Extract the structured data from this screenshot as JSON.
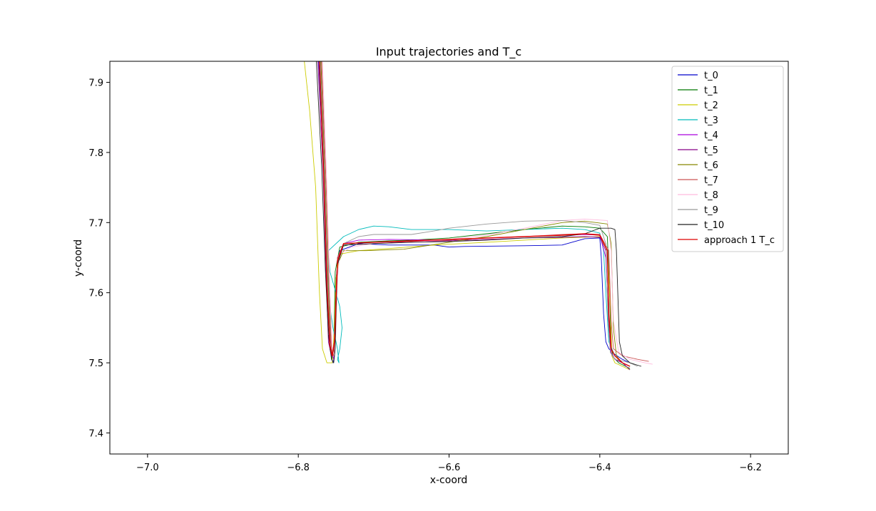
{
  "chart_data": {
    "type": "line",
    "title": "Input trajectories and T_c",
    "xlabel": "x-coord",
    "ylabel": "y-coord",
    "xlim": [
      -7.05,
      -6.15
    ],
    "ylim": [
      7.37,
      7.93
    ],
    "xticks": [
      -7.0,
      -6.8,
      -6.6,
      -6.4,
      -6.2
    ],
    "xtick_labels": [
      "−7.0",
      "−6.8",
      "−6.6",
      "−6.4",
      "−6.2"
    ],
    "yticks": [
      7.4,
      7.5,
      7.6,
      7.7,
      7.8,
      7.9
    ],
    "ytick_labels": [
      "7.4",
      "7.5",
      "7.6",
      "7.7",
      "7.8",
      "7.9"
    ],
    "grid": false,
    "legend_position": "top-right",
    "series": [
      {
        "name": "t_0",
        "color": "#0000cc",
        "x": [
          -6.773,
          -6.765,
          -6.762,
          -6.758,
          -6.754,
          -6.752,
          -6.751,
          -6.75,
          -6.745,
          -6.72,
          -6.68,
          -6.62,
          -6.6,
          -6.58,
          -6.5,
          -6.45,
          -6.42,
          -6.4,
          -6.398,
          -6.395,
          -6.392,
          -6.388,
          -6.38,
          -6.37,
          -6.36
        ],
        "y": [
          7.93,
          7.75,
          7.6,
          7.52,
          7.5,
          7.51,
          7.56,
          7.62,
          7.66,
          7.67,
          7.668,
          7.668,
          7.665,
          7.666,
          7.667,
          7.668,
          7.677,
          7.678,
          7.65,
          7.57,
          7.53,
          7.52,
          7.512,
          7.505,
          7.5
        ]
      },
      {
        "name": "t_1",
        "color": "#007700",
        "x": [
          -6.771,
          -6.765,
          -6.762,
          -6.758,
          -6.755,
          -6.753,
          -6.752,
          -6.751,
          -6.745,
          -6.72,
          -6.68,
          -6.65,
          -6.6,
          -6.55,
          -6.5,
          -6.45,
          -6.42,
          -6.4,
          -6.39,
          -6.387,
          -6.385,
          -6.382,
          -6.375,
          -6.36
        ],
        "y": [
          7.93,
          7.75,
          7.6,
          7.52,
          7.505,
          7.52,
          7.57,
          7.63,
          7.665,
          7.672,
          7.674,
          7.675,
          7.678,
          7.684,
          7.69,
          7.695,
          7.694,
          7.692,
          7.68,
          7.6,
          7.52,
          7.508,
          7.5,
          7.492
        ]
      },
      {
        "name": "t_2",
        "color": "#cccc00",
        "x": [
          -6.792,
          -6.785,
          -6.777,
          -6.772,
          -6.768,
          -6.762,
          -6.755,
          -6.752,
          -6.75,
          -6.745,
          -6.72,
          -6.68,
          -6.62,
          -6.55,
          -6.5,
          -6.45,
          -6.4,
          -6.39,
          -6.386,
          -6.384,
          -6.38,
          -6.37,
          -6.36
        ],
        "y": [
          7.93,
          7.86,
          7.75,
          7.6,
          7.52,
          7.5,
          7.5,
          7.55,
          7.62,
          7.655,
          7.66,
          7.663,
          7.668,
          7.672,
          7.675,
          7.678,
          7.68,
          7.66,
          7.58,
          7.51,
          7.5,
          7.495,
          7.49
        ]
      },
      {
        "name": "t_3",
        "color": "#00bbbb",
        "x": [
          -6.772,
          -6.766,
          -6.762,
          -6.758,
          -6.754,
          -6.748,
          -6.746,
          -6.748,
          -6.745,
          -6.742,
          -6.745,
          -6.75,
          -6.758,
          -6.76,
          -6.74,
          -6.72,
          -6.7,
          -6.68,
          -6.65,
          -6.6,
          -6.55,
          -6.5,
          -6.45,
          -6.42,
          -6.4,
          -6.395,
          -6.392,
          -6.388,
          -6.38,
          -6.37,
          -6.36
        ],
        "y": [
          7.93,
          7.8,
          7.65,
          7.58,
          7.55,
          7.52,
          7.5,
          7.505,
          7.52,
          7.55,
          7.58,
          7.6,
          7.63,
          7.66,
          7.68,
          7.69,
          7.695,
          7.694,
          7.69,
          7.69,
          7.688,
          7.69,
          7.692,
          7.69,
          7.685,
          7.66,
          7.6,
          7.53,
          7.51,
          7.5,
          7.495
        ]
      },
      {
        "name": "t_4",
        "color": "#aa00dd",
        "x": [
          -6.77,
          -6.764,
          -6.761,
          -6.757,
          -6.753,
          -6.751,
          -6.75,
          -6.748,
          -6.74,
          -6.72,
          -6.68,
          -6.6,
          -6.55,
          -6.5,
          -6.45,
          -6.42,
          -6.4,
          -6.392,
          -6.388,
          -6.385,
          -6.38,
          -6.37,
          -6.36
        ],
        "y": [
          7.93,
          7.75,
          7.6,
          7.52,
          7.505,
          7.53,
          7.6,
          7.65,
          7.67,
          7.675,
          7.676,
          7.675,
          7.678,
          7.68,
          7.682,
          7.683,
          7.682,
          7.65,
          7.55,
          7.515,
          7.505,
          7.5,
          7.495
        ]
      },
      {
        "name": "t_5",
        "color": "#880088",
        "x": [
          -6.774,
          -6.767,
          -6.763,
          -6.76,
          -6.756,
          -6.752,
          -6.75,
          -6.748,
          -6.74,
          -6.7,
          -6.65,
          -6.6,
          -6.55,
          -6.5,
          -6.45,
          -6.42,
          -6.4,
          -6.392,
          -6.389,
          -6.386,
          -6.38,
          -6.37,
          -6.36
        ],
        "y": [
          7.93,
          7.77,
          7.62,
          7.53,
          7.51,
          7.53,
          7.59,
          7.65,
          7.668,
          7.67,
          7.673,
          7.674,
          7.676,
          7.678,
          7.679,
          7.68,
          7.679,
          7.66,
          7.57,
          7.515,
          7.505,
          7.5,
          7.49
        ]
      },
      {
        "name": "t_6",
        "color": "#888800",
        "x": [
          -6.77,
          -6.764,
          -6.76,
          -6.756,
          -6.752,
          -6.75,
          -6.748,
          -6.74,
          -6.71,
          -6.66,
          -6.6,
          -6.55,
          -6.5,
          -6.45,
          -6.42,
          -6.39,
          -6.385,
          -6.382,
          -6.378,
          -6.37,
          -6.36
        ],
        "y": [
          7.93,
          7.75,
          7.6,
          7.515,
          7.51,
          7.56,
          7.64,
          7.66,
          7.66,
          7.662,
          7.672,
          7.68,
          7.69,
          7.7,
          7.702,
          7.698,
          7.67,
          7.55,
          7.51,
          7.5,
          7.495
        ]
      },
      {
        "name": "t_7",
        "color": "#cc5555",
        "x": [
          -6.769,
          -6.763,
          -6.759,
          -6.756,
          -6.753,
          -6.751,
          -6.75,
          -6.748,
          -6.74,
          -6.7,
          -6.65,
          -6.6,
          -6.55,
          -6.5,
          -6.45,
          -6.42,
          -6.4,
          -6.388,
          -6.385,
          -6.382,
          -6.37,
          -6.35,
          -6.335
        ],
        "y": [
          7.93,
          7.75,
          7.6,
          7.52,
          7.51,
          7.54,
          7.6,
          7.65,
          7.67,
          7.672,
          7.673,
          7.675,
          7.678,
          7.68,
          7.683,
          7.684,
          7.683,
          7.66,
          7.56,
          7.52,
          7.51,
          7.505,
          7.502
        ]
      },
      {
        "name": "t_8",
        "color": "#ffbbdd",
        "x": [
          -6.768,
          -6.762,
          -6.758,
          -6.755,
          -6.752,
          -6.75,
          -6.748,
          -6.745,
          -6.73,
          -6.7,
          -6.65,
          -6.6,
          -6.55,
          -6.5,
          -6.45,
          -6.42,
          -6.39,
          -6.385,
          -6.382,
          -6.375,
          -6.36,
          -6.34,
          -6.33
        ],
        "y": [
          7.93,
          7.75,
          7.6,
          7.52,
          7.51,
          7.55,
          7.62,
          7.655,
          7.665,
          7.67,
          7.672,
          7.676,
          7.682,
          7.692,
          7.703,
          7.705,
          7.703,
          7.66,
          7.56,
          7.515,
          7.505,
          7.5,
          7.498
        ]
      },
      {
        "name": "t_9",
        "color": "#999999",
        "x": [
          -6.771,
          -6.765,
          -6.761,
          -6.758,
          -6.755,
          -6.752,
          -6.75,
          -6.748,
          -6.74,
          -6.72,
          -6.7,
          -6.65,
          -6.62,
          -6.6,
          -6.55,
          -6.5,
          -6.45,
          -6.42,
          -6.4,
          -6.392,
          -6.389,
          -6.386,
          -6.38,
          -6.36,
          -6.35
        ],
        "y": [
          7.93,
          7.76,
          7.61,
          7.53,
          7.51,
          7.53,
          7.58,
          7.64,
          7.67,
          7.68,
          7.683,
          7.683,
          7.688,
          7.692,
          7.698,
          7.702,
          7.703,
          7.7,
          7.696,
          7.67,
          7.56,
          7.515,
          7.505,
          7.5,
          7.495
        ]
      },
      {
        "name": "t_10",
        "color": "#222222",
        "x": [
          -6.776,
          -6.769,
          -6.764,
          -6.76,
          -6.756,
          -6.753,
          -6.751,
          -6.75,
          -6.748,
          -6.74,
          -6.7,
          -6.65,
          -6.6,
          -6.55,
          -6.5,
          -6.45,
          -6.42,
          -6.4,
          -6.385,
          -6.38,
          -6.378,
          -6.374,
          -6.37,
          -6.36,
          -6.345
        ],
        "y": [
          7.93,
          7.78,
          7.63,
          7.54,
          7.505,
          7.5,
          7.52,
          7.57,
          7.64,
          7.668,
          7.67,
          7.672,
          7.673,
          7.675,
          7.678,
          7.68,
          7.684,
          7.692,
          7.692,
          7.69,
          7.66,
          7.53,
          7.51,
          7.5,
          7.495
        ]
      },
      {
        "name": "approach 1 T_c",
        "color": "#dd0000",
        "x": [
          -6.772,
          -6.766,
          -6.762,
          -6.758,
          -6.755,
          -6.752,
          -6.75,
          -6.748,
          -6.74,
          -6.7,
          -6.65,
          -6.6,
          -6.55,
          -6.5,
          -6.45,
          -6.42,
          -6.4,
          -6.39,
          -6.388,
          -6.385,
          -6.38,
          -6.37,
          -6.36
        ],
        "y": [
          7.93,
          7.76,
          7.61,
          7.525,
          7.51,
          7.53,
          7.59,
          7.645,
          7.67,
          7.672,
          7.674,
          7.676,
          7.678,
          7.68,
          7.682,
          7.684,
          7.682,
          7.66,
          7.57,
          7.52,
          7.51,
          7.5,
          7.495
        ]
      }
    ]
  }
}
